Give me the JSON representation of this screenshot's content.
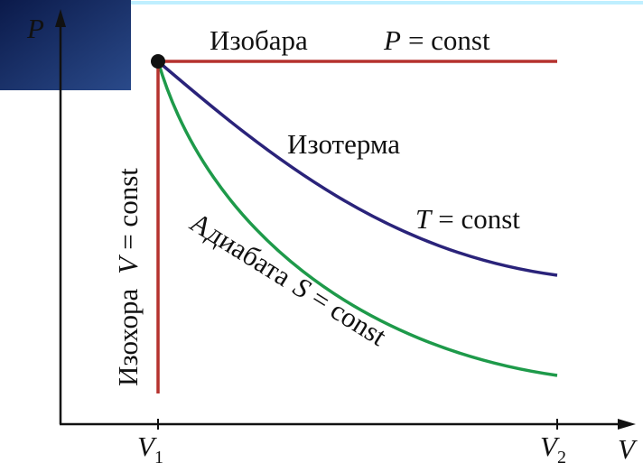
{
  "axes": {
    "y": {
      "symbol": "P"
    },
    "x": {
      "symbol": "V"
    },
    "x_marks": [
      {
        "symbol": "V",
        "sub": "1"
      },
      {
        "symbol": "V",
        "sub": "2"
      }
    ]
  },
  "curves": {
    "isobar": {
      "name": "Изобара",
      "symbol": "P",
      "rest": "= const"
    },
    "isotherm": {
      "name": "Изотерма",
      "symbol": "T",
      "rest": "= const"
    },
    "adiabat": {
      "name": "Адиабата",
      "symbol": "S",
      "rest": "= const"
    },
    "isochore": {
      "name": "Изохора",
      "symbol": "V",
      "rest": "= const"
    }
  }
}
